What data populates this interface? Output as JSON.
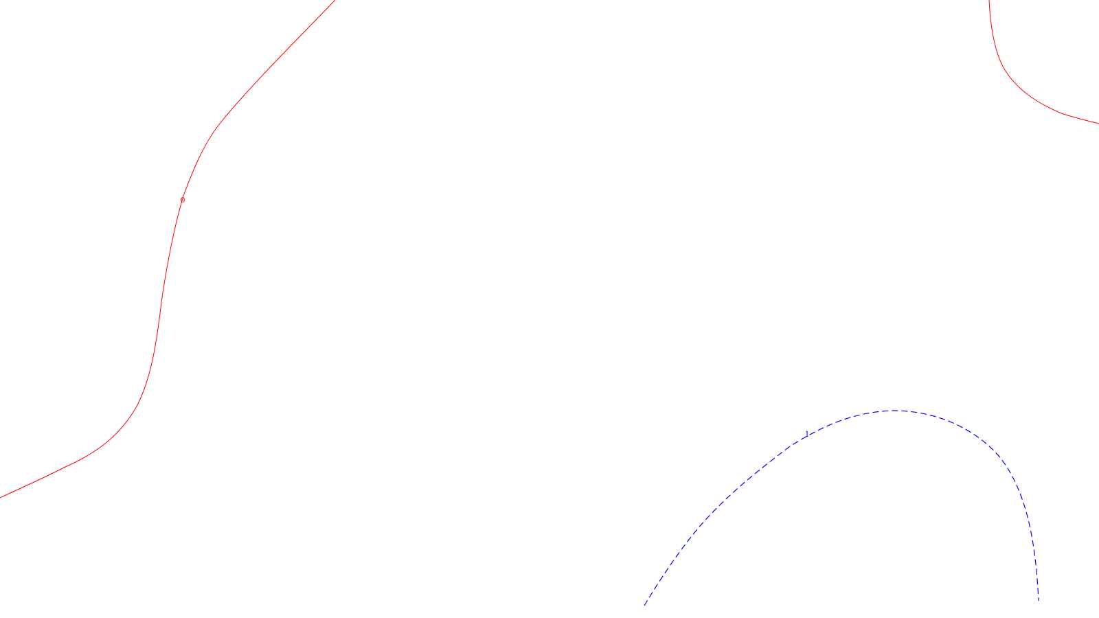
{
  "chart_data": {
    "type": "contour",
    "title": "",
    "xlabel": "",
    "ylabel": "",
    "grid": false,
    "legend": "none",
    "series": [
      {
        "level": "0",
        "color": "#ff0000",
        "line_style": "solid",
        "segments": 2
      },
      {
        "level": "1",
        "color": "#0000ff",
        "line_style": "dashed",
        "segments": 1
      }
    ]
  }
}
